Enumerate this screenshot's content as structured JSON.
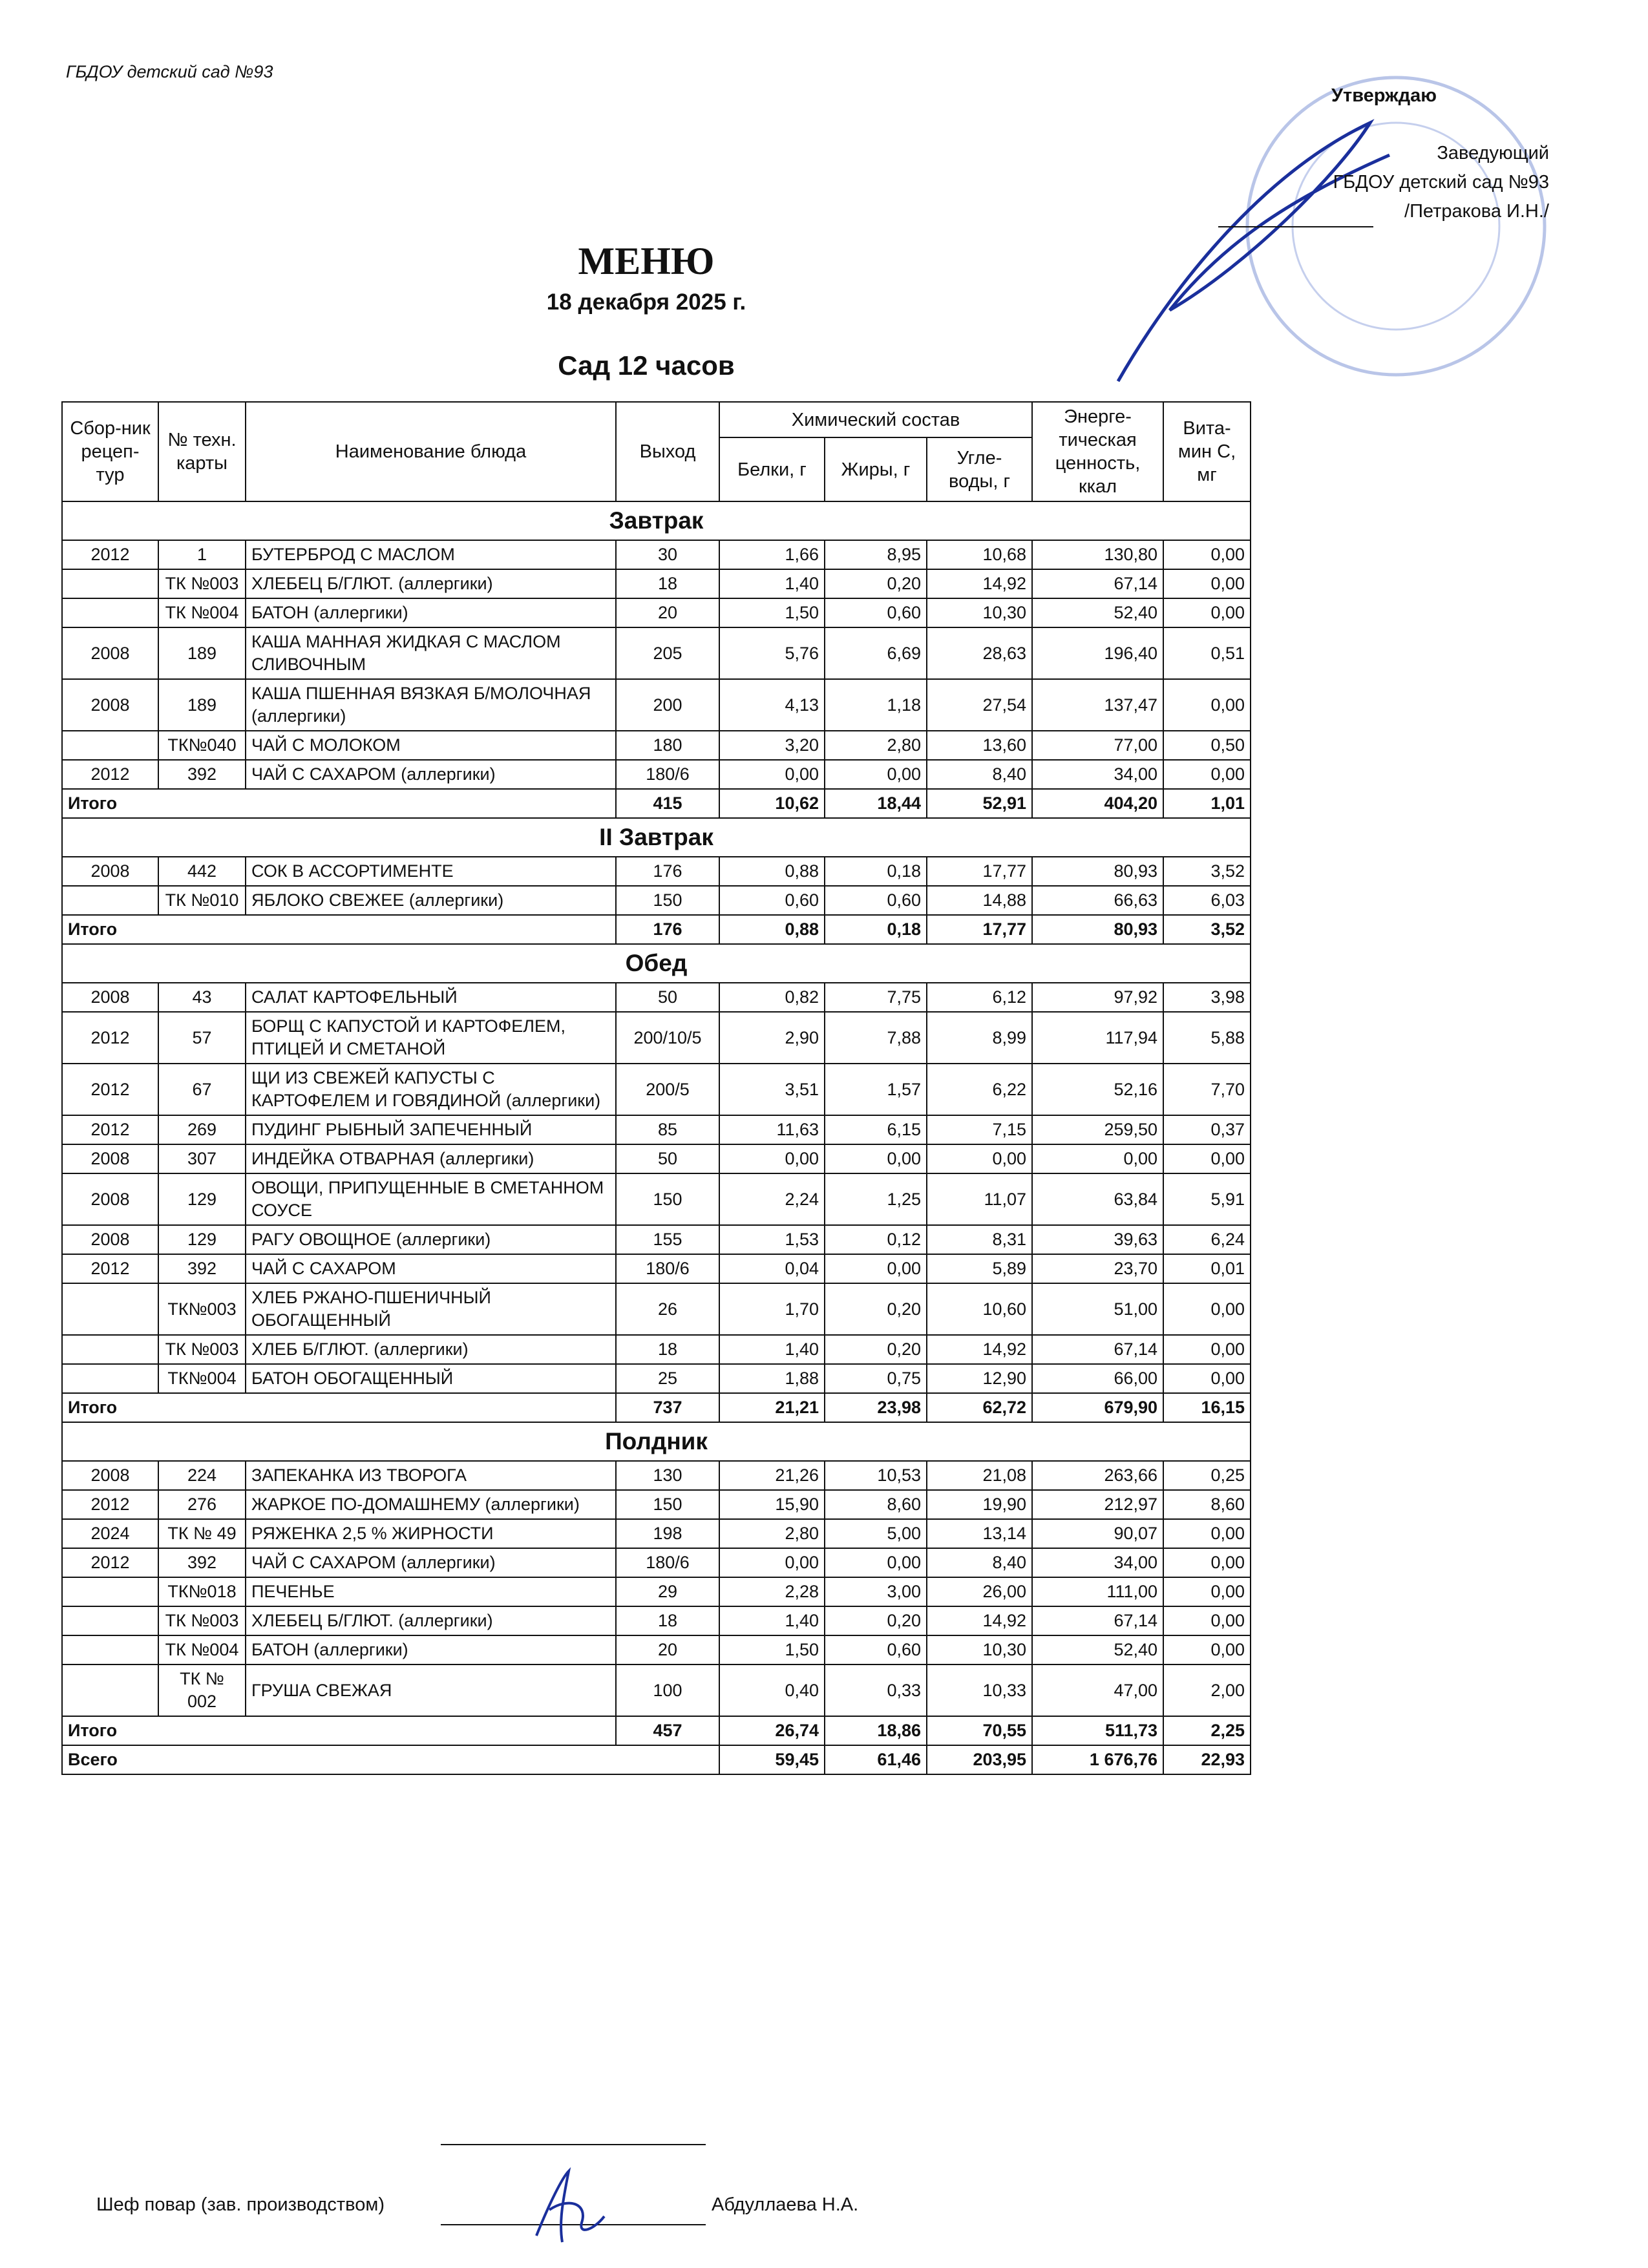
{
  "header": {
    "org": "ГБДОУ детский сад №93"
  },
  "approval": {
    "title": "Утверждаю",
    "position": "Заведующий",
    "org": "ГБДОУ детский сад №93",
    "name": "/Петракова И.Н./"
  },
  "title": "МЕНЮ",
  "date": "18 декабря 2025 г.",
  "subtitle": "Сад 12 часов",
  "table": {
    "columns": [
      "Сбор-ник рецеп-тур",
      "№ техн. карты",
      "Наименование блюда",
      "Выход",
      "Белки, г",
      "Жиры, г",
      "Угле-воды, г",
      "Энерге-тическая ценность, ккал",
      "Вита-мин С, мг"
    ],
    "group": "Химический состав",
    "sections": [
      {
        "name": "Завтрак",
        "rows": [
          [
            "2012",
            "1",
            "БУТЕРБРОД С МАСЛОМ",
            "30",
            "1,66",
            "8,95",
            "10,68",
            "130,80",
            "0,00"
          ],
          [
            null,
            "ТК №003",
            "ХЛЕБЕЦ Б/ГЛЮТ. (аллергики)",
            "18",
            "1,40",
            "0,20",
            "14,92",
            "67,14",
            "0,00"
          ],
          [
            null,
            "ТК №004",
            "БАТОН (аллергики)",
            "20",
            "1,50",
            "0,60",
            "10,30",
            "52,40",
            "0,00"
          ],
          [
            "2008",
            "189",
            "КАША МАННАЯ ЖИДКАЯ С МАСЛОМ СЛИВОЧНЫМ",
            "205",
            "5,76",
            "6,69",
            "28,63",
            "196,40",
            "0,51"
          ],
          [
            "2008",
            "189",
            "КАША ПШЕННАЯ ВЯЗКАЯ Б/МОЛОЧНАЯ (аллергики)",
            "200",
            "4,13",
            "1,18",
            "27,54",
            "137,47",
            "0,00"
          ],
          [
            null,
            "ТК№040",
            "ЧАЙ С МОЛОКОМ",
            "180",
            "3,20",
            "2,80",
            "13,60",
            "77,00",
            "0,50"
          ],
          [
            "2012",
            "392",
            "ЧАЙ С САХАРОМ (аллергики)",
            "180/6",
            "0,00",
            "0,00",
            "8,40",
            "34,00",
            "0,00"
          ]
        ],
        "total": {
          "label": "Итого",
          "values": [
            "415",
            "10,62",
            "18,44",
            "52,91",
            "404,20",
            "1,01"
          ]
        }
      },
      {
        "name": "II Завтрак",
        "rows": [
          [
            "2008",
            "442",
            "СОК В АССОРТИМЕНТЕ",
            "176",
            "0,88",
            "0,18",
            "17,77",
            "80,93",
            "3,52"
          ],
          [
            null,
            "ТК №010",
            "ЯБЛОКО СВЕЖЕЕ (аллергики)",
            "150",
            "0,60",
            "0,60",
            "14,88",
            "66,63",
            "6,03"
          ]
        ],
        "total": {
          "label": "Итого",
          "values": [
            "176",
            "0,88",
            "0,18",
            "17,77",
            "80,93",
            "3,52"
          ]
        }
      },
      {
        "name": "Обед",
        "rows": [
          [
            "2008",
            "43",
            "САЛАТ КАРТОФЕЛЬНЫЙ",
            "50",
            "0,82",
            "7,75",
            "6,12",
            "97,92",
            "3,98"
          ],
          [
            "2012",
            "57",
            "БОРЩ С КАПУСТОЙ И КАРТОФЕЛЕМ, ПТИЦЕЙ И СМЕТАНОЙ",
            "200/10/5",
            "2,90",
            "7,88",
            "8,99",
            "117,94",
            "5,88"
          ],
          [
            "2012",
            "67",
            "ЩИ ИЗ СВЕЖЕЙ КАПУСТЫ С КАРТОФЕЛЕМ И ГОВЯДИНОЙ (аллергики)",
            "200/5",
            "3,51",
            "1,57",
            "6,22",
            "52,16",
            "7,70"
          ],
          [
            "2012",
            "269",
            "ПУДИНГ РЫБНЫЙ ЗАПЕЧЕННЫЙ",
            "85",
            "11,63",
            "6,15",
            "7,15",
            "259,50",
            "0,37"
          ],
          [
            "2008",
            "307",
            "ИНДЕЙКА ОТВАРНАЯ (аллергики)",
            "50",
            "0,00",
            "0,00",
            "0,00",
            "0,00",
            "0,00"
          ],
          [
            "2008",
            "129",
            "ОВОЩИ, ПРИПУЩЕННЫЕ В СМЕТАННОМ СОУСЕ",
            "150",
            "2,24",
            "1,25",
            "11,07",
            "63,84",
            "5,91"
          ],
          [
            "2008",
            "129",
            "РАГУ ОВОЩНОЕ  (аллергики)",
            "155",
            "1,53",
            "0,12",
            "8,31",
            "39,63",
            "6,24"
          ],
          [
            "2012",
            "392",
            "ЧАЙ С САХАРОМ",
            "180/6",
            "0,04",
            "0,00",
            "5,89",
            "23,70",
            "0,01"
          ],
          [
            null,
            "ТК№003",
            "ХЛЕБ РЖАНО-ПШЕНИЧНЫЙ ОБОГАЩЕННЫЙ",
            "26",
            "1,70",
            "0,20",
            "10,60",
            "51,00",
            "0,00"
          ],
          [
            null,
            "ТК №003",
            "ХЛЕБ Б/ГЛЮТ. (аллергики)",
            "18",
            "1,40",
            "0,20",
            "14,92",
            "67,14",
            "0,00"
          ],
          [
            null,
            "ТК№004",
            "БАТОН ОБОГАЩЕННЫЙ",
            "25",
            "1,88",
            "0,75",
            "12,90",
            "66,00",
            "0,00"
          ]
        ],
        "total": {
          "label": "Итого",
          "values": [
            "737",
            "21,21",
            "23,98",
            "62,72",
            "679,90",
            "16,15"
          ]
        }
      },
      {
        "name": "Полдник",
        "rows": [
          [
            "2008",
            "224",
            "ЗАПЕКАНКА ИЗ ТВОРОГА",
            "130",
            "21,26",
            "10,53",
            "21,08",
            "263,66",
            "0,25"
          ],
          [
            "2012",
            "276",
            "ЖАРКОЕ ПО-ДОМАШНЕМУ (аллергики)",
            "150",
            "15,90",
            "8,60",
            "19,90",
            "212,97",
            "8,60"
          ],
          [
            "2024",
            "ТК № 49",
            "РЯЖЕНКА 2,5 % ЖИРНОСТИ",
            "198",
            "2,80",
            "5,00",
            "13,14",
            "90,07",
            "0,00"
          ],
          [
            "2012",
            "392",
            "ЧАЙ С САХАРОМ (аллергики)",
            "180/6",
            "0,00",
            "0,00",
            "8,40",
            "34,00",
            "0,00"
          ],
          [
            null,
            "ТК№018",
            "ПЕЧЕНЬЕ",
            "29",
            "2,28",
            "3,00",
            "26,00",
            "111,00",
            "0,00"
          ],
          [
            null,
            "ТК №003",
            "ХЛЕБЕЦ Б/ГЛЮТ. (аллергики)",
            "18",
            "1,40",
            "0,20",
            "14,92",
            "67,14",
            "0,00"
          ],
          [
            null,
            "ТК №004",
            "БАТОН (аллергики)",
            "20",
            "1,50",
            "0,60",
            "10,30",
            "52,40",
            "0,00"
          ],
          [
            null,
            "ТК № 002",
            "ГРУША СВЕЖАЯ",
            "100",
            "0,40",
            "0,33",
            "10,33",
            "47,00",
            "2,00"
          ]
        ],
        "total": {
          "label": "Итого",
          "values": [
            "457",
            "26,74",
            "18,86",
            "70,55",
            "511,73",
            "2,25"
          ]
        }
      }
    ],
    "grand_total": {
      "label": "Всего",
      "values": [
        "59,45",
        "61,46",
        "203,95",
        "1 676,76",
        "22,93"
      ]
    }
  },
  "footer": {
    "role": "Шеф повар (зав. производством)",
    "name": "Абдуллаева Н.А."
  }
}
